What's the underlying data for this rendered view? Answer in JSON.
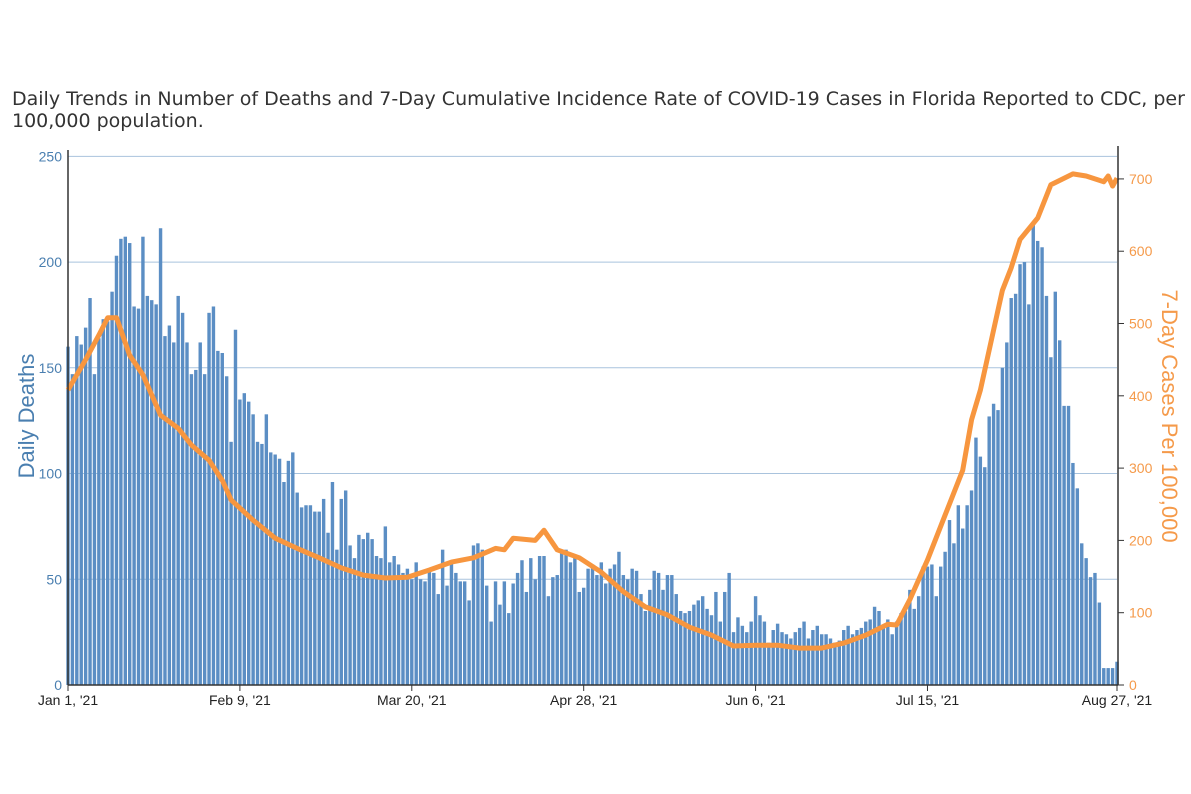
{
  "chart_data": {
    "type": "bar+line",
    "title": "Daily Trends in Number of Deaths and 7-Day Cumulative Incidence Rate of COVID-19 Cases in Florida Reported to CDC, per 100,000 population.",
    "start_date": "2021-01-01",
    "end_date": "2021-08-27",
    "x_tick_labels": [
      "Jan 1, '21",
      "Feb 9, '21",
      "Mar 20, '21",
      "Apr 28, '21",
      "Jun 6, '21",
      "Jul 15, '21",
      "Aug 27, '21"
    ],
    "x_tick_dates": [
      "2021-01-01",
      "2021-02-09",
      "2021-03-20",
      "2021-04-28",
      "2021-06-06",
      "2021-07-15",
      "2021-08-27"
    ],
    "ylabel_left": "Daily Deaths",
    "ylim_left": [
      0,
      253
    ],
    "yticks_left": [
      0,
      50,
      100,
      150,
      200,
      250
    ],
    "ylabel_right": "7-Day Cases Per 100,000",
    "ylim_right": [
      0,
      740
    ],
    "yticks_right": [
      0,
      100,
      200,
      300,
      400,
      500,
      600,
      700
    ],
    "grid": true,
    "colors": {
      "deaths": "#5b8ec4",
      "cases": "#f7963f",
      "left_axis": "#4a7fb0",
      "right_axis": "#f59a4a"
    },
    "deaths_daily": [
      160,
      147,
      165,
      161,
      169,
      183,
      147,
      164,
      173,
      172,
      186,
      203,
      211,
      212,
      209,
      179,
      178,
      212,
      184,
      182,
      180,
      216,
      165,
      170,
      162,
      184,
      176,
      162,
      147,
      149,
      162,
      147,
      176,
      179,
      158,
      157,
      146,
      115,
      168,
      135,
      138,
      134,
      128,
      115,
      114,
      128,
      110,
      109,
      107,
      96,
      106,
      110,
      91,
      84,
      85,
      85,
      82,
      82,
      88,
      72,
      96,
      64,
      88,
      92,
      66,
      60,
      71,
      69,
      72,
      69,
      61,
      60,
      75,
      58,
      61,
      57,
      53,
      55,
      50,
      58,
      50,
      49,
      55,
      53,
      43,
      64,
      47,
      59,
      53,
      49,
      49,
      40,
      66,
      67,
      64,
      47,
      30,
      49,
      38,
      49,
      34,
      48,
      53,
      59,
      44,
      60,
      50,
      61,
      61,
      42,
      51,
      52,
      63,
      64,
      58,
      60,
      44,
      46,
      55,
      57,
      52,
      58,
      48,
      55,
      57,
      63,
      52,
      50,
      55,
      54,
      43,
      35,
      45,
      54,
      53,
      45,
      52,
      52,
      43,
      35,
      34,
      35,
      38,
      40,
      42,
      36,
      33,
      44,
      30,
      44,
      53,
      25,
      32,
      28,
      25,
      30,
      42,
      33,
      30,
      20,
      26,
      29,
      25,
      24,
      22,
      25,
      27,
      30,
      22,
      26,
      28,
      24,
      24,
      22,
      20,
      21,
      26,
      28,
      24,
      26,
      27,
      30,
      31,
      37,
      35,
      27,
      31,
      24,
      30,
      34,
      35,
      45,
      36,
      42,
      56,
      56,
      57,
      42,
      56,
      63,
      78,
      67,
      85,
      74,
      85,
      92,
      117,
      108,
      103,
      127,
      133,
      130,
      150,
      162,
      183,
      185,
      199,
      200,
      180,
      219,
      210,
      207,
      184,
      155,
      186,
      163,
      132,
      132,
      105,
      93,
      67,
      60,
      51,
      53,
      39,
      8,
      8,
      8,
      11
    ],
    "cases_7day_per_100k": [
      [
        "2021-01-01",
        408
      ],
      [
        "2021-01-05",
        450
      ],
      [
        "2021-01-08",
        484
      ],
      [
        "2021-01-10",
        508
      ],
      [
        "2021-01-12",
        508
      ],
      [
        "2021-01-15",
        456
      ],
      [
        "2021-01-18",
        429
      ],
      [
        "2021-01-22",
        373
      ],
      [
        "2021-01-26",
        355
      ],
      [
        "2021-01-29",
        332
      ],
      [
        "2021-02-02",
        311
      ],
      [
        "2021-02-05",
        283
      ],
      [
        "2021-02-07",
        256
      ],
      [
        "2021-02-12",
        228
      ],
      [
        "2021-02-17",
        203
      ],
      [
        "2021-02-22",
        189
      ],
      [
        "2021-02-27",
        176
      ],
      [
        "2021-03-04",
        162
      ],
      [
        "2021-03-09",
        152
      ],
      [
        "2021-03-14",
        148
      ],
      [
        "2021-03-19",
        149
      ],
      [
        "2021-03-24",
        159
      ],
      [
        "2021-03-29",
        170
      ],
      [
        "2021-04-03",
        176
      ],
      [
        "2021-04-08",
        189
      ],
      [
        "2021-04-10",
        187
      ],
      [
        "2021-04-12",
        203
      ],
      [
        "2021-04-17",
        200
      ],
      [
        "2021-04-19",
        214
      ],
      [
        "2021-04-22",
        187
      ],
      [
        "2021-04-27",
        176
      ],
      [
        "2021-05-02",
        156
      ],
      [
        "2021-05-07",
        129
      ],
      [
        "2021-05-12",
        108
      ],
      [
        "2021-05-17",
        97
      ],
      [
        "2021-05-22",
        80
      ],
      [
        "2021-05-27",
        69
      ],
      [
        "2021-06-01",
        54
      ],
      [
        "2021-06-06",
        55
      ],
      [
        "2021-06-11",
        55
      ],
      [
        "2021-06-16",
        51
      ],
      [
        "2021-06-21",
        51
      ],
      [
        "2021-06-26",
        58
      ],
      [
        "2021-07-01",
        69
      ],
      [
        "2021-07-06",
        84
      ],
      [
        "2021-07-08",
        83
      ],
      [
        "2021-07-11",
        118
      ],
      [
        "2021-07-15",
        173
      ],
      [
        "2021-07-19",
        235
      ],
      [
        "2021-07-23",
        297
      ],
      [
        "2021-07-25",
        367
      ],
      [
        "2021-07-27",
        408
      ],
      [
        "2021-07-30",
        491
      ],
      [
        "2021-08-01",
        546
      ],
      [
        "2021-08-03",
        577
      ],
      [
        "2021-08-05",
        616
      ],
      [
        "2021-08-09",
        646
      ],
      [
        "2021-08-12",
        692
      ],
      [
        "2021-08-15",
        701
      ],
      [
        "2021-08-17",
        707
      ],
      [
        "2021-08-20",
        704
      ],
      [
        "2021-08-24",
        696
      ],
      [
        "2021-08-25",
        704
      ],
      [
        "2021-08-26",
        690
      ],
      [
        "2021-08-27",
        701
      ]
    ]
  }
}
